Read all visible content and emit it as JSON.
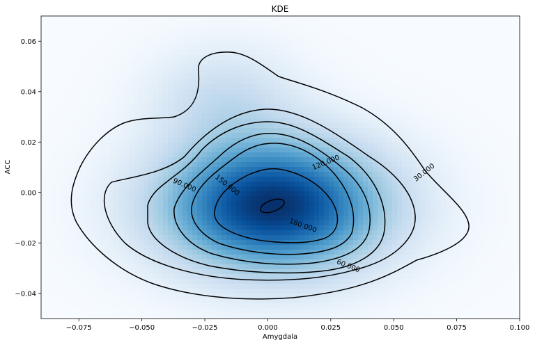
{
  "chart_data": {
    "type": "heatmap",
    "title": "KDE",
    "xlabel": "Amygdala",
    "ylabel": "ACC",
    "xlim": [
      -0.09,
      0.1
    ],
    "ylim": [
      -0.05,
      0.07
    ],
    "x_ticks": [
      "−0.075",
      "−0.050",
      "−0.025",
      "0.000",
      "0.025",
      "0.050",
      "0.075",
      "0.100"
    ],
    "x_tick_values": [
      -0.075,
      -0.05,
      -0.025,
      0.0,
      0.025,
      0.05,
      0.075,
      0.1
    ],
    "y_ticks": [
      "−0.04",
      "−0.02",
      "0.00",
      "0.02",
      "0.04",
      "0.06"
    ],
    "y_tick_values": [
      -0.04,
      -0.02,
      0.0,
      0.02,
      0.04,
      0.06
    ],
    "colormap": "Blues",
    "density_peak": {
      "x": 0.002,
      "y": -0.005
    },
    "contour_levels": [
      30,
      60,
      90,
      120,
      150,
      180,
      210
    ],
    "contour_labels": [
      {
        "text": "30.000",
        "x": 0.062,
        "y": 0.008,
        "rotation": 38
      },
      {
        "text": "60.000",
        "x": 0.032,
        "y": -0.029,
        "rotation": -22
      },
      {
        "text": "90.000",
        "x": -0.033,
        "y": 0.003,
        "rotation": -24
      },
      {
        "text": "120.000",
        "x": 0.023,
        "y": 0.012,
        "rotation": 22
      },
      {
        "text": "150.000",
        "x": -0.016,
        "y": 0.003,
        "rotation": -38
      },
      {
        "text": "180.000",
        "x": 0.014,
        "y": -0.013,
        "rotation": -20
      }
    ],
    "grid": false
  }
}
